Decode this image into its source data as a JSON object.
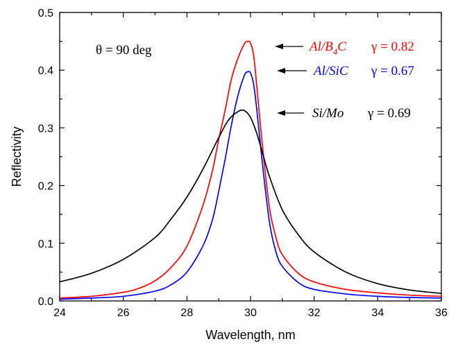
{
  "chart_data": {
    "type": "line",
    "xlabel": "Wavelength, nm",
    "ylabel": "Reflectivity",
    "xlim": [
      24,
      36
    ],
    "ylim": [
      0.0,
      0.5
    ],
    "xticks": [
      "24",
      "26",
      "28",
      "30",
      "32",
      "34",
      "36"
    ],
    "yticks": [
      "0.0",
      "0.1",
      "0.2",
      "0.3",
      "0.4",
      "0.5"
    ],
    "grid": false,
    "annotation_theta": "θ = 90 deg",
    "series": [
      {
        "key": "alb4c",
        "color": "#ff0000",
        "label_main": "Al/B",
        "label_sub": "4",
        "label_tail": "C",
        "gamma": "γ = 0.82",
        "x": [
          24.0,
          25.0,
          26.0,
          26.5,
          27.0,
          27.5,
          28.0,
          28.5,
          28.8,
          29.0,
          29.2,
          29.4,
          29.6,
          29.8,
          29.9,
          30.0,
          30.1,
          30.2,
          30.4,
          30.6,
          30.8,
          31.0,
          31.5,
          32.0,
          33.0,
          34.0,
          35.0,
          36.0
        ],
        "y": [
          0.005,
          0.008,
          0.015,
          0.022,
          0.035,
          0.058,
          0.095,
          0.165,
          0.225,
          0.28,
          0.33,
          0.385,
          0.42,
          0.445,
          0.45,
          0.447,
          0.425,
          0.37,
          0.255,
          0.16,
          0.11,
          0.08,
          0.048,
          0.033,
          0.02,
          0.014,
          0.01,
          0.008
        ]
      },
      {
        "key": "alsic",
        "color": "#0000ff",
        "label_main": "Al/SiC",
        "gamma": "γ = 0.67",
        "x": [
          24.0,
          25.0,
          26.0,
          27.0,
          27.5,
          28.0,
          28.5,
          28.8,
          29.0,
          29.2,
          29.4,
          29.6,
          29.8,
          29.9,
          30.0,
          30.1,
          30.2,
          30.4,
          30.6,
          30.8,
          31.0,
          31.5,
          32.0,
          33.0,
          34.0,
          35.0,
          36.0
        ],
        "y": [
          0.003,
          0.005,
          0.008,
          0.017,
          0.028,
          0.05,
          0.095,
          0.14,
          0.19,
          0.245,
          0.305,
          0.355,
          0.39,
          0.397,
          0.395,
          0.375,
          0.33,
          0.225,
          0.135,
          0.085,
          0.06,
          0.032,
          0.02,
          0.012,
          0.008,
          0.006,
          0.005
        ]
      },
      {
        "key": "simo",
        "color": "#000000",
        "label_main": "Si/Mo",
        "gamma": "γ = 0.69",
        "x": [
          24.0,
          25.0,
          26.0,
          27.0,
          27.5,
          28.0,
          28.5,
          29.0,
          29.3,
          29.6,
          29.8,
          30.0,
          30.2,
          30.4,
          30.6,
          31.0,
          31.5,
          32.0,
          33.0,
          34.0,
          35.0,
          36.0
        ],
        "y": [
          0.033,
          0.048,
          0.072,
          0.11,
          0.142,
          0.18,
          0.228,
          0.283,
          0.313,
          0.328,
          0.33,
          0.318,
          0.29,
          0.252,
          0.215,
          0.158,
          0.115,
          0.085,
          0.05,
          0.03,
          0.019,
          0.013
        ]
      }
    ]
  }
}
